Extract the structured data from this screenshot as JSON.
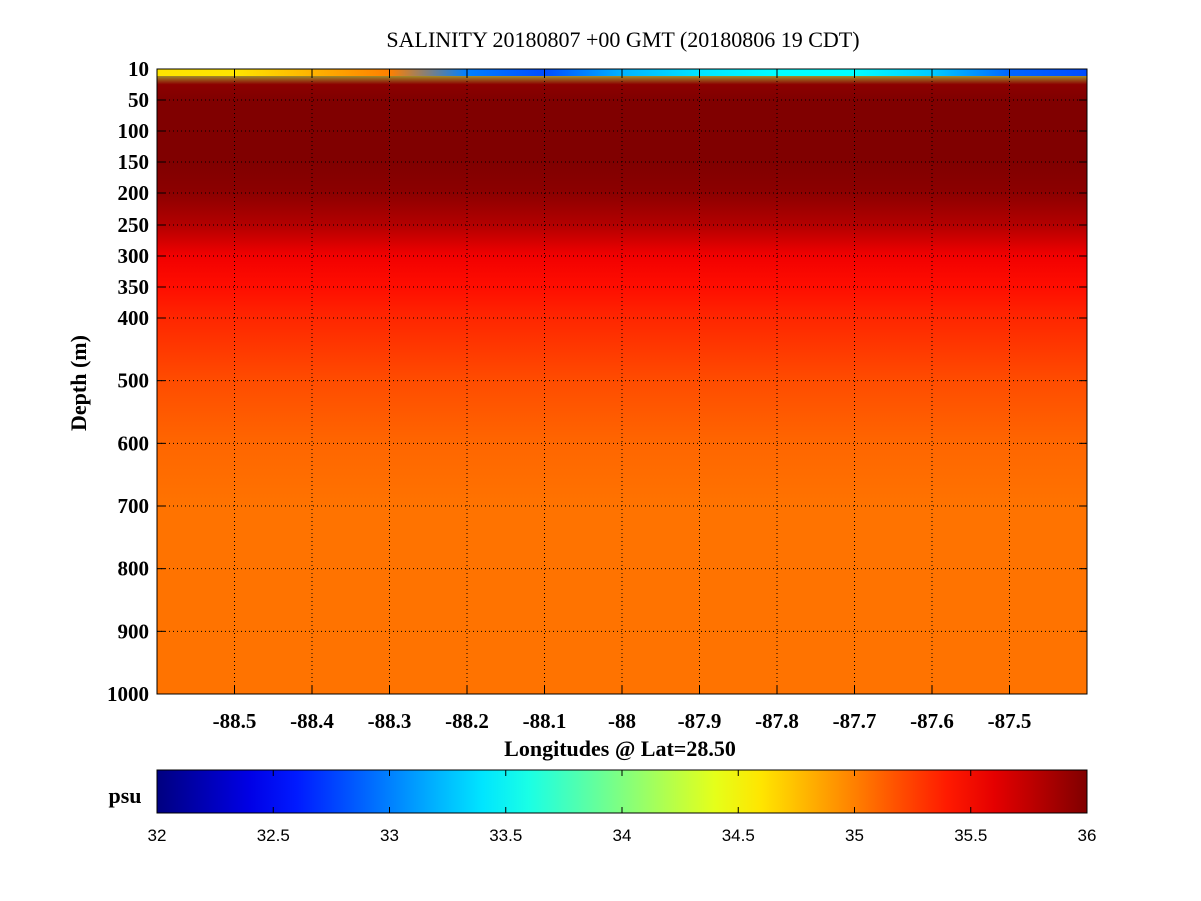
{
  "chart_data": {
    "type": "heatmap",
    "title": "SALINITY 20180807 +00 GMT (20180806 19 CDT)",
    "xlabel": "Longitudes @ Lat=28.50",
    "ylabel": "Depth (m)",
    "xlim": [
      -88.6,
      -87.4
    ],
    "ylim": [
      1000,
      10
    ],
    "x_ticks": [
      -88.5,
      -88.4,
      -88.3,
      -88.2,
      -88.1,
      -88,
      -87.9,
      -87.8,
      -87.7,
      -87.6,
      -87.5
    ],
    "x_tick_labels": [
      "-88.5",
      "-88.4",
      "-88.3",
      "-88.2",
      "-88.1",
      "-88",
      "-87.9",
      "-87.8",
      "-87.7",
      "-87.6",
      "-87.5"
    ],
    "y_ticks": [
      10,
      50,
      100,
      150,
      200,
      250,
      300,
      350,
      400,
      500,
      600,
      700,
      800,
      900,
      1000
    ],
    "y_tick_labels": [
      "10",
      "50",
      "100",
      "150",
      "200",
      "250",
      "300",
      "350",
      "400",
      "500",
      "600",
      "700",
      "800",
      "900",
      "1000"
    ],
    "grid": true,
    "colormap": "jet",
    "colorbar": {
      "label": "psu",
      "range": [
        32,
        36
      ],
      "ticks": [
        32,
        32.5,
        33,
        33.5,
        34,
        34.5,
        35,
        35.5,
        36
      ],
      "tick_labels": [
        "32",
        "32.5",
        "33",
        "33.5",
        "34",
        "34.5",
        "35",
        "35.5",
        "36"
      ]
    },
    "profile_by_depth": {
      "depth": [
        10,
        30,
        50,
        100,
        150,
        200,
        250,
        300,
        350,
        400,
        500,
        600,
        700,
        800,
        900,
        1000
      ],
      "salinity": [
        34.2,
        35.95,
        36.0,
        36.0,
        36.0,
        35.95,
        35.8,
        35.55,
        35.45,
        35.35,
        35.2,
        35.1,
        35.05,
        35.05,
        35.05,
        35.05
      ]
    },
    "surface_salinity": {
      "longitude": [
        -88.6,
        -88.5,
        -88.4,
        -88.3,
        -88.2,
        -88.1,
        -88.0,
        -87.9,
        -87.8,
        -87.7,
        -87.6,
        -87.5,
        -87.4
      ],
      "salinity": [
        34.6,
        34.6,
        34.8,
        35.0,
        33.0,
        32.8,
        33.2,
        33.4,
        33.5,
        33.5,
        33.3,
        32.9,
        32.8
      ]
    }
  }
}
